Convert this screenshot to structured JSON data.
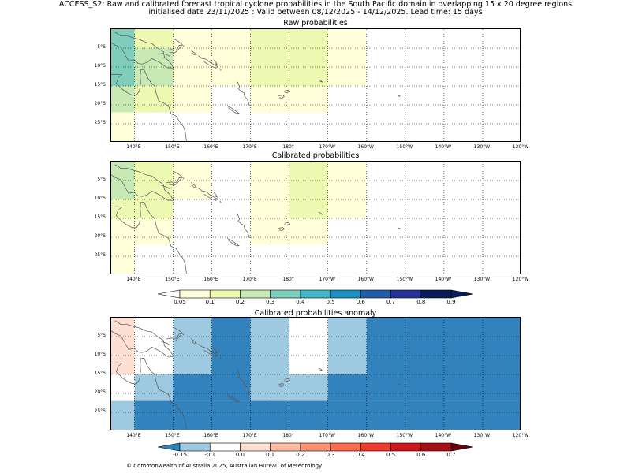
{
  "header": {
    "title_line1": "ACCESS_S2: Raw and calibrated forecast tropical cyclone probabilities in the South Pacific domain in overlapping 15 x 20 degree regions",
    "title_line2": "initialised date 23/11/2025 :  Valid between 08/12/2025 - 14/12/2025. Lead time: 15 days"
  },
  "panels": [
    {
      "title": "Raw probabilities",
      "palette": "prob",
      "cells": [
        {
          "lon0": 134,
          "lon1": 140,
          "lat0": 0,
          "lat1": -5,
          "cat": 4
        },
        {
          "lon0": 134,
          "lon1": 140,
          "lat0": -5,
          "lat1": -15,
          "cat": 4
        },
        {
          "lon0": 140,
          "lon1": 150,
          "lat0": -5,
          "lat1": -15,
          "cat": 3
        },
        {
          "lon0": 140,
          "lon1": 150,
          "lat0": 0,
          "lat1": -5,
          "cat": 2
        },
        {
          "lon0": 134,
          "lon1": 140,
          "lat0": -15,
          "lat1": -22,
          "cat": 3
        },
        {
          "lon0": 140,
          "lon1": 150,
          "lat0": -15,
          "lat1": -22,
          "cat": 2
        },
        {
          "lon0": 150,
          "lon1": 160,
          "lat0": 0,
          "lat1": -22,
          "cat": 1
        },
        {
          "lon0": 134,
          "lon1": 140,
          "lat0": -22,
          "lat1": -30,
          "cat": 1
        },
        {
          "lon0": 160,
          "lon1": 170,
          "lat0": 0,
          "lat1": -15,
          "cat": 1
        },
        {
          "lon0": 170,
          "lon1": 190,
          "lat0": 0,
          "lat1": -15,
          "cat": 2
        },
        {
          "lon0": 190,
          "lon1": 200,
          "lat0": 0,
          "lat1": -15,
          "cat": 1
        },
        {
          "lon0": 170,
          "lon1": 190,
          "lat0": -15,
          "lat1": -22,
          "cat": 1
        }
      ]
    },
    {
      "title": "Calibrated probabilities",
      "palette": "prob",
      "cells": [
        {
          "lon0": 134,
          "lon1": 140,
          "lat0": 0,
          "lat1": -10,
          "cat": 3
        },
        {
          "lon0": 134,
          "lon1": 140,
          "lat0": -10,
          "lat1": -15,
          "cat": 2
        },
        {
          "lon0": 140,
          "lon1": 150,
          "lat0": 0,
          "lat1": -15,
          "cat": 2
        },
        {
          "lon0": 134,
          "lon1": 150,
          "lat0": -15,
          "lat1": -22,
          "cat": 1
        },
        {
          "lon0": 150,
          "lon1": 160,
          "lat0": 0,
          "lat1": -10,
          "cat": 1
        },
        {
          "lon0": 134,
          "lon1": 140,
          "lat0": -22,
          "lat1": -30,
          "cat": 1
        },
        {
          "lon0": 170,
          "lon1": 180,
          "lat0": 0,
          "lat1": -15,
          "cat": 1
        },
        {
          "lon0": 180,
          "lon1": 190,
          "lat0": 0,
          "lat1": -15,
          "cat": 2
        },
        {
          "lon0": 190,
          "lon1": 200,
          "lat0": 0,
          "lat1": -15,
          "cat": 1
        },
        {
          "lon0": 170,
          "lon1": 190,
          "lat0": -15,
          "lat1": -22,
          "cat": 1
        }
      ]
    },
    {
      "title": "Calibrated probabilities anomaly",
      "palette": "anom",
      "cells": [
        {
          "lon0": 134,
          "lon1": 140,
          "lat0": 0,
          "lat1": -15,
          "cat": 3
        },
        {
          "lon0": 150,
          "lon1": 160,
          "lat0": 0,
          "lat1": -15,
          "cat": 1
        },
        {
          "lon0": 160,
          "lon1": 170,
          "lat0": 0,
          "lat1": -15,
          "cat": 0
        },
        {
          "lon0": 170,
          "lon1": 180,
          "lat0": 0,
          "lat1": -15,
          "cat": 1
        },
        {
          "lon0": 190,
          "lon1": 200,
          "lat0": 0,
          "lat1": -15,
          "cat": 1
        },
        {
          "lon0": 200,
          "lon1": 240,
          "lat0": 0,
          "lat1": -15,
          "cat": 0
        },
        {
          "lon0": 140,
          "lon1": 150,
          "lat0": -15,
          "lat1": -22,
          "cat": 1
        },
        {
          "lon0": 150,
          "lon1": 170,
          "lat0": -15,
          "lat1": -22,
          "cat": 0
        },
        {
          "lon0": 170,
          "lon1": 190,
          "lat0": -15,
          "lat1": -22,
          "cat": 1
        },
        {
          "lon0": 190,
          "lon1": 240,
          "lat0": -15,
          "lat1": -22,
          "cat": 0
        },
        {
          "lon0": 134,
          "lon1": 140,
          "lat0": -22,
          "lat1": -30,
          "cat": 1
        },
        {
          "lon0": 140,
          "lon1": 240,
          "lat0": -22,
          "lat1": -30,
          "cat": 0
        }
      ]
    }
  ],
  "map_extent": {
    "lon_min": 134,
    "lon_max": 240,
    "lat_max": 0,
    "lat_min": -30
  },
  "lat_labels": [
    {
      "lat": -5,
      "label": "5°S"
    },
    {
      "lat": -10,
      "label": "10°S"
    },
    {
      "lat": -15,
      "label": "15°S"
    },
    {
      "lat": -20,
      "label": "20°S"
    },
    {
      "lat": -25,
      "label": "25°S"
    }
  ],
  "lon_labels": [
    {
      "lon": 140,
      "label": "140°E"
    },
    {
      "lon": 150,
      "label": "150°E"
    },
    {
      "lon": 160,
      "label": "160°E"
    },
    {
      "lon": 170,
      "label": "170°E"
    },
    {
      "lon": 180,
      "label": "180°"
    },
    {
      "lon": 190,
      "label": "170°W"
    },
    {
      "lon": 200,
      "label": "160°W"
    },
    {
      "lon": 210,
      "label": "150°W"
    },
    {
      "lon": 220,
      "label": "140°W"
    },
    {
      "lon": 230,
      "label": "130°W"
    },
    {
      "lon": 240,
      "label": "120°W"
    }
  ],
  "colorbars": {
    "prob": {
      "low_color": "#ffffff",
      "high_color": "#081d58",
      "colors": [
        "#ffffd9",
        "#edf8b1",
        "#c7e9b4",
        "#7fcdbb",
        "#41b6c4",
        "#1d91c0",
        "#225ea8",
        "#253494",
        "#081d58"
      ],
      "labels": [
        "0.05",
        "0.1",
        "0.2",
        "0.3",
        "0.4",
        "0.5",
        "0.6",
        "0.7",
        "0.8",
        "0.9"
      ]
    },
    "anom": {
      "low_color": "#2b83ba",
      "high_color": "#67000d",
      "colors": [
        "#9ecae1",
        "#ffffff",
        "#fee0d2",
        "#fcbba1",
        "#fc9272",
        "#fb6a4a",
        "#ef3b2c",
        "#cb181d",
        "#a50f15"
      ],
      "labels": [
        "-0.15",
        "-0.1",
        "0.0",
        "0.1",
        "0.2",
        "0.3",
        "0.4",
        "0.5",
        "0.6",
        "0.7"
      ]
    }
  },
  "palettes": {
    "prob": [
      "#ffffff",
      "#ffffd9",
      "#edf8b1",
      "#c7e9b4",
      "#7fcdbb"
    ],
    "anom": [
      "#3182bd",
      "#9ecae1",
      "#ffffff",
      "#fee0d2"
    ]
  },
  "footer": "© Commonwealth of Australia 2025, Australian Bureau of Meteorology"
}
